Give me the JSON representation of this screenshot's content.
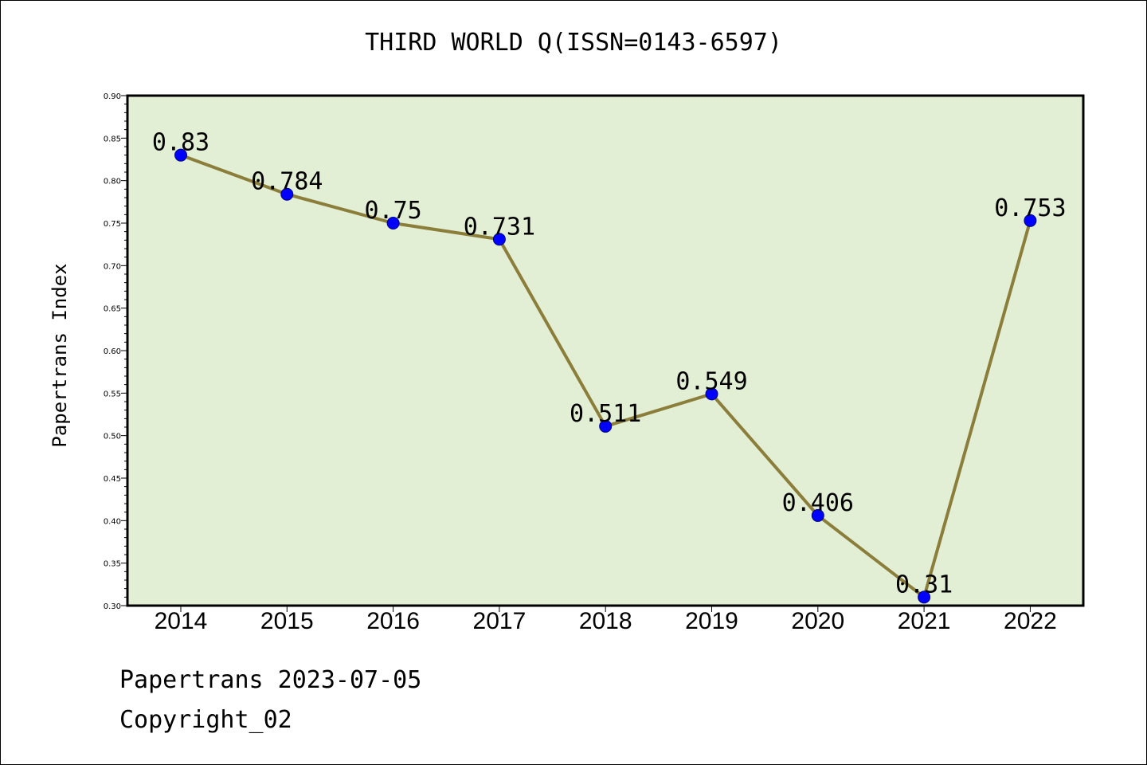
{
  "chart_data": {
    "type": "line",
    "title": "THIRD WORLD Q(ISSN=0143-6597)",
    "xlabel": "",
    "ylabel": "Papertrans Index",
    "categories": [
      "2014",
      "2015",
      "2016",
      "2017",
      "2018",
      "2019",
      "2020",
      "2021",
      "2022"
    ],
    "values": [
      0.83,
      0.784,
      0.75,
      0.731,
      0.511,
      0.549,
      0.406,
      0.31,
      0.753
    ],
    "data_labels": [
      "0.83",
      "0.784",
      "0.75",
      "0.731",
      "0.511",
      "0.549",
      "0.406",
      "0.31",
      "0.753"
    ],
    "ylim": [
      0.3,
      0.9
    ],
    "yticks": [
      "0.30",
      "0.35",
      "0.40",
      "0.45",
      "0.50",
      "0.55",
      "0.60",
      "0.65",
      "0.70",
      "0.75",
      "0.80",
      "0.85",
      "0.90"
    ],
    "grid": false,
    "colors": {
      "plot_background": "#e2efd5",
      "line": "#8b7d3a",
      "marker": "#0000ff",
      "marker_edge": "#000080"
    }
  },
  "footer": {
    "line1": "Papertrans 2023-07-05",
    "line2": "Copyright_02"
  }
}
